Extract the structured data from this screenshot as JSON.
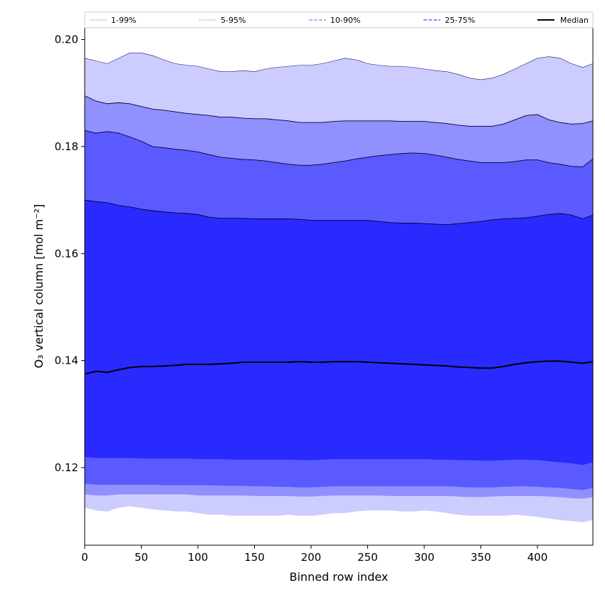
{
  "chart_data": {
    "type": "area",
    "xlabel": "Binned row index",
    "ylabel": "O₃ vertical column [mol m⁻²]",
    "xlim": [
      0,
      449
    ],
    "ylim": [
      0.1055,
      0.2022
    ],
    "xticks": [
      0,
      50,
      100,
      150,
      200,
      250,
      300,
      350,
      400
    ],
    "yticks": [
      0.12,
      0.14,
      0.16,
      0.18,
      0.2
    ],
    "ytick_labels": [
      "0.12",
      "0.14",
      "0.16",
      "0.18",
      "0.20"
    ],
    "grid": false,
    "legend_position": "top, above axes, single row",
    "legend": [
      {
        "label": "1-99%",
        "color": "#ccccff",
        "style": "solid"
      },
      {
        "label": "5-95%",
        "color": "#9999ff",
        "style": "dotted"
      },
      {
        "label": "10-90%",
        "color": "#8080ff",
        "style": "dashed"
      },
      {
        "label": "25-75%",
        "color": "#4d4dff",
        "style": "dashed"
      },
      {
        "label": "Median",
        "color": "#000000",
        "style": "solid"
      }
    ],
    "x": [
      0,
      10,
      20,
      30,
      40,
      50,
      60,
      70,
      80,
      90,
      100,
      110,
      120,
      130,
      140,
      150,
      160,
      170,
      180,
      190,
      200,
      210,
      220,
      230,
      240,
      250,
      260,
      270,
      280,
      290,
      300,
      310,
      320,
      330,
      340,
      350,
      360,
      370,
      380,
      390,
      400,
      410,
      420,
      430,
      440,
      449
    ],
    "bands": [
      {
        "name": "1-99%",
        "color": "#ccccff",
        "upper": [
          0.1965,
          0.196,
          0.1955,
          0.1965,
          0.1975,
          0.1975,
          0.197,
          0.1962,
          0.1955,
          0.1952,
          0.195,
          0.1945,
          0.194,
          0.194,
          0.1942,
          0.194,
          0.1945,
          0.1948,
          0.195,
          0.1952,
          0.1952,
          0.1955,
          0.196,
          0.1965,
          0.1962,
          0.1955,
          0.1952,
          0.195,
          0.195,
          0.1948,
          0.1945,
          0.1942,
          0.194,
          0.1935,
          0.1928,
          0.1925,
          0.1928,
          0.1935,
          0.1945,
          0.1955,
          0.1965,
          0.1968,
          0.1965,
          0.1955,
          0.1948,
          0.1955
        ],
        "lower": [
          0.1125,
          0.112,
          0.1118,
          0.1125,
          0.1128,
          0.1125,
          0.1122,
          0.112,
          0.1118,
          0.1118,
          0.1115,
          0.1112,
          0.1112,
          0.111,
          0.111,
          0.111,
          0.111,
          0.111,
          0.1112,
          0.111,
          0.111,
          0.1112,
          0.1115,
          0.1115,
          0.1118,
          0.112,
          0.112,
          0.112,
          0.1118,
          0.1118,
          0.112,
          0.1118,
          0.1115,
          0.1112,
          0.111,
          0.111,
          0.111,
          0.111,
          0.1112,
          0.111,
          0.1108,
          0.1105,
          0.1102,
          0.11,
          0.1098,
          0.1102
        ]
      },
      {
        "name": "5-95%",
        "color": "#9090ff",
        "upper": [
          0.1895,
          0.1885,
          0.188,
          0.1882,
          0.188,
          0.1875,
          0.187,
          0.1868,
          0.1865,
          0.1862,
          0.186,
          0.1858,
          0.1855,
          0.1855,
          0.1853,
          0.1852,
          0.1852,
          0.185,
          0.1848,
          0.1845,
          0.1845,
          0.1845,
          0.1847,
          0.1848,
          0.1848,
          0.1848,
          0.1848,
          0.1848,
          0.1847,
          0.1847,
          0.1847,
          0.1845,
          0.1843,
          0.184,
          0.1838,
          0.1838,
          0.1838,
          0.1842,
          0.185,
          0.1858,
          0.186,
          0.185,
          0.1845,
          0.1842,
          0.1843,
          0.1848
        ],
        "lower": [
          0.115,
          0.1148,
          0.1148,
          0.115,
          0.115,
          0.115,
          0.115,
          0.115,
          0.115,
          0.115,
          0.1148,
          0.1148,
          0.1148,
          0.1148,
          0.1148,
          0.1147,
          0.1147,
          0.1147,
          0.1147,
          0.1146,
          0.1146,
          0.1147,
          0.1148,
          0.1148,
          0.1148,
          0.1148,
          0.1148,
          0.1147,
          0.1147,
          0.1147,
          0.1147,
          0.1147,
          0.1147,
          0.1146,
          0.1145,
          0.1145,
          0.1146,
          0.1147,
          0.1147,
          0.1147,
          0.1147,
          0.1146,
          0.1145,
          0.1143,
          0.1142,
          0.1145
        ]
      },
      {
        "name": "10-90%",
        "color": "#5a5aff",
        "upper": [
          0.183,
          0.1825,
          0.1828,
          0.1825,
          0.1818,
          0.181,
          0.18,
          0.1798,
          0.1795,
          0.1793,
          0.179,
          0.1785,
          0.178,
          0.1778,
          0.1776,
          0.1775,
          0.1773,
          0.177,
          0.1767,
          0.1765,
          0.1765,
          0.1767,
          0.177,
          0.1773,
          0.1777,
          0.178,
          0.1783,
          0.1785,
          0.1787,
          0.1788,
          0.1787,
          0.1784,
          0.178,
          0.1776,
          0.1773,
          0.177,
          0.177,
          0.177,
          0.1772,
          0.1775,
          0.1775,
          0.177,
          0.1767,
          0.1763,
          0.1762,
          0.1777
        ],
        "lower": [
          0.117,
          0.1168,
          0.1168,
          0.1168,
          0.1168,
          0.1168,
          0.1168,
          0.1167,
          0.1167,
          0.1167,
          0.1167,
          0.1167,
          0.1166,
          0.1166,
          0.1166,
          0.1165,
          0.1165,
          0.1164,
          0.1164,
          0.1163,
          0.1163,
          0.1164,
          0.1165,
          0.1165,
          0.1165,
          0.1165,
          0.1165,
          0.1165,
          0.1165,
          0.1165,
          0.1165,
          0.1165,
          0.1165,
          0.1164,
          0.1163,
          0.1163,
          0.1163,
          0.1164,
          0.1165,
          0.1165,
          0.1164,
          0.1163,
          0.1162,
          0.116,
          0.1158,
          0.1162
        ]
      },
      {
        "name": "25-75%",
        "color": "#2a2aff",
        "upper": [
          0.17,
          0.1697,
          0.1695,
          0.169,
          0.1687,
          0.1683,
          0.168,
          0.1678,
          0.1676,
          0.1675,
          0.1673,
          0.1668,
          0.1666,
          0.1666,
          0.1666,
          0.1665,
          0.1665,
          0.1665,
          0.1665,
          0.1664,
          0.1662,
          0.1662,
          0.1662,
          0.1662,
          0.1662,
          0.1662,
          0.166,
          0.1658,
          0.1657,
          0.1657,
          0.1656,
          0.1655,
          0.1654,
          0.1656,
          0.1658,
          0.166,
          0.1663,
          0.1665,
          0.1666,
          0.1667,
          0.167,
          0.1673,
          0.1675,
          0.1672,
          0.1665,
          0.1672
        ],
        "lower": [
          0.122,
          0.1218,
          0.1218,
          0.1218,
          0.1218,
          0.1217,
          0.1217,
          0.1217,
          0.1217,
          0.1217,
          0.1216,
          0.1216,
          0.1216,
          0.1215,
          0.1215,
          0.1215,
          0.1215,
          0.1215,
          0.1215,
          0.1214,
          0.1214,
          0.1215,
          0.1216,
          0.1216,
          0.1216,
          0.1216,
          0.1216,
          0.1216,
          0.1216,
          0.1216,
          0.1216,
          0.1215,
          0.1215,
          0.1214,
          0.1214,
          0.1213,
          0.1213,
          0.1214,
          0.1215,
          0.1215,
          0.1214,
          0.1212,
          0.121,
          0.1208,
          0.1205,
          0.121
        ]
      }
    ],
    "median": {
      "name": "Median",
      "color": "#000000",
      "values": [
        0.1375,
        0.138,
        0.1378,
        0.1383,
        0.1387,
        0.1389,
        0.1389,
        0.139,
        0.1391,
        0.1393,
        0.1393,
        0.1393,
        0.1394,
        0.1395,
        0.1397,
        0.1397,
        0.1397,
        0.1397,
        0.1397,
        0.1398,
        0.1397,
        0.1397,
        0.1398,
        0.1398,
        0.1398,
        0.1397,
        0.1396,
        0.1395,
        0.1394,
        0.1393,
        0.1392,
        0.1391,
        0.139,
        0.1388,
        0.1387,
        0.1386,
        0.1386,
        0.1389,
        0.1393,
        0.1396,
        0.1398,
        0.1399,
        0.1399,
        0.1397,
        0.1395,
        0.1398
      ]
    }
  }
}
